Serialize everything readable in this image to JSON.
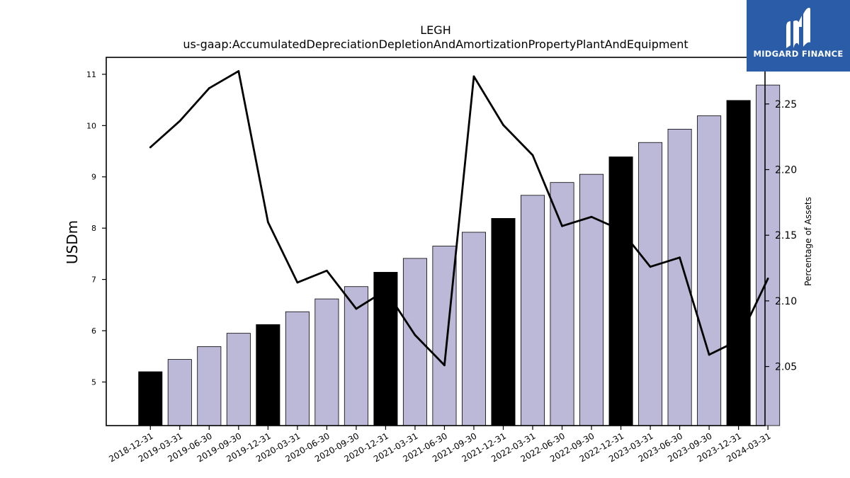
{
  "chart_data": {
    "type": "bar",
    "title": "LEGH",
    "subtitle": "us-gaap:AccumulatedDepreciationDepletionAndAmortizationPropertyPlantAndEquipment",
    "ylabel": "USDm",
    "y2label": "Percentage of Assets",
    "ylim": [
      4.15,
      11.33
    ],
    "y2lim": [
      2.005,
      2.2855
    ],
    "yticks": [
      5,
      6,
      7,
      8,
      9,
      10,
      11
    ],
    "y2ticks": [
      "2.05",
      "2.10",
      "2.15",
      "2.20",
      "2.25"
    ],
    "categories": [
      "2018-12-31",
      "2019-03-31",
      "2019-06-30",
      "2019-09-30",
      "2019-12-31",
      "2020-03-31",
      "2020-06-30",
      "2020-09-30",
      "2020-12-31",
      "2021-03-31",
      "2021-06-30",
      "2021-09-30",
      "2021-12-31",
      "2022-03-31",
      "2022-06-30",
      "2022-09-30",
      "2022-12-31",
      "2023-03-31",
      "2023-06-30",
      "2023-09-30",
      "2023-12-31",
      "2024-03-31"
    ],
    "series": [
      {
        "kind": "bar",
        "values": [
          5.2,
          5.44,
          5.69,
          5.95,
          6.12,
          6.37,
          6.62,
          6.86,
          7.14,
          7.41,
          7.65,
          7.92,
          8.19,
          8.64,
          8.89,
          9.05,
          9.39,
          9.67,
          9.93,
          10.19,
          10.49,
          10.79
        ]
      },
      {
        "kind": "line",
        "axis": "right",
        "values": [
          2.217,
          2.237,
          2.262,
          2.275,
          2.16,
          2.114,
          2.123,
          2.094,
          2.108,
          2.074,
          2.051,
          2.271,
          2.234,
          2.211,
          2.157,
          2.164,
          2.154,
          2.126,
          2.133,
          2.059,
          2.07,
          2.117
        ]
      }
    ],
    "bar_colors": {
      "annual": "#000000",
      "quarterly": "#bcb8d8"
    },
    "annual_indices": [
      0,
      4,
      8,
      12,
      16,
      20
    ],
    "line_color": "#000000",
    "grid": false,
    "legend": "none"
  },
  "logo": {
    "text": "MIDGARD FINANCE",
    "background": "#2a5ca8",
    "icon": "midgard-m-icon"
  }
}
